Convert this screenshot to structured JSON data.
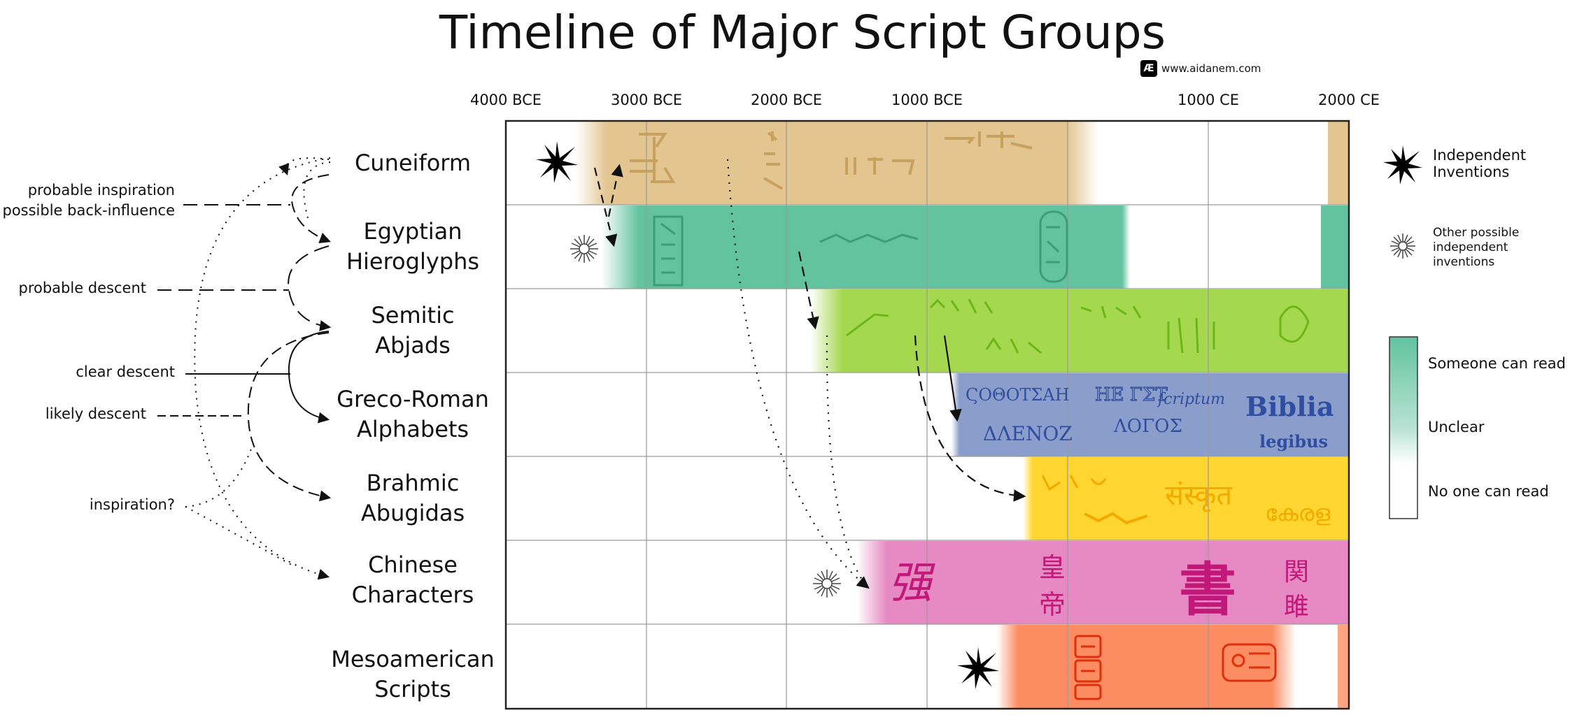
{
  "title": "Timeline of Major Script Groups",
  "credit": {
    "logo": "Æ",
    "url": "www.aidanem.com"
  },
  "axis_labels": [
    "4000 BCE",
    "3000 BCE",
    "2000 BCE",
    "1000 BCE",
    "1000 CE",
    "2000 CE"
  ],
  "rows": [
    {
      "line1": "Cuneiform",
      "line2": "",
      "color": "#E3C590"
    },
    {
      "line1": "Egyptian",
      "line2": "Hieroglyphs",
      "color": "#62C3A1"
    },
    {
      "line1": "Semitic",
      "line2": "Abjads",
      "color": "#A5D84E"
    },
    {
      "line1": "Greco-Roman",
      "line2": "Alphabets",
      "color": "#8A9DCB"
    },
    {
      "line1": "Brahmic",
      "line2": "Abugidas",
      "color": "#FFD530"
    },
    {
      "line1": "Chinese",
      "line2": "Characters",
      "color": "#E78AC3"
    },
    {
      "line1": "Mesoamerican",
      "line2": "Scripts",
      "color": "#FC8D62"
    }
  ],
  "relations": {
    "inspiration_backinfluence_1": "probable inspiration",
    "inspiration_backinfluence_2": "possible back-influence",
    "probable_descent": "probable descent",
    "clear_descent": "clear descent",
    "likely_descent": "likely descent",
    "inspiration": "inspiration?"
  },
  "legend": {
    "independent": "Independent",
    "independent2": "Inventions",
    "other1": "Other possible",
    "other2": "independent",
    "other3": "inventions",
    "someone": "Someone can read",
    "unclear": "Unclear",
    "none": "No one can read"
  },
  "sample_text": {
    "greek1": "ϚΟΘΟΤΣΑΗ",
    "greek2": "ΗΕ ΓΣΤ",
    "latin_script": "ſcriptum",
    "greek3": "ΔΛΕΝΟΖ",
    "greek4": "ΛΟΓΟΣ",
    "biblia": "Biblia",
    "legibus": "legibus",
    "hanzi1": "皇",
    "hanzi2": "帝",
    "hanzi3": "書",
    "hanzi4": "関",
    "hanzi5": "雎",
    "hanzi6": "强",
    "kerala": "കേരള",
    "devanagari": "संस्कृत"
  }
}
